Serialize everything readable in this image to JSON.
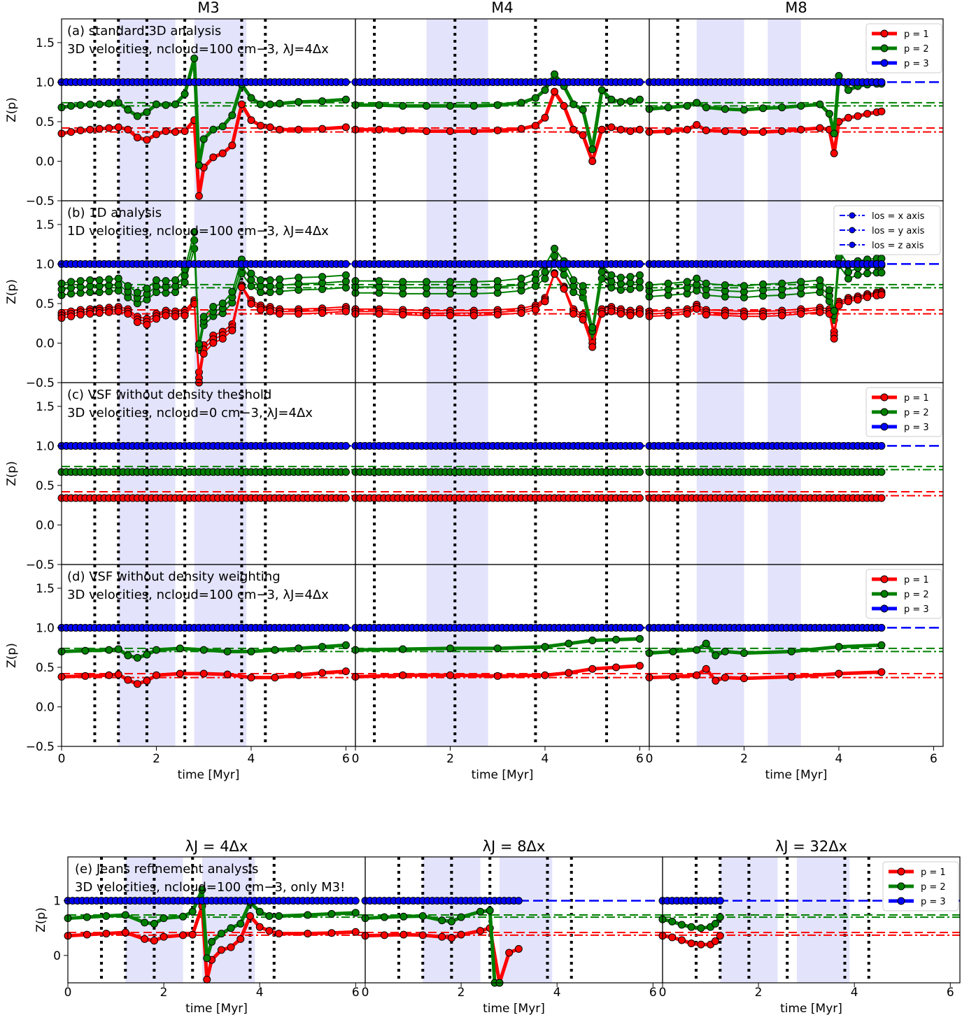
{
  "columns": [
    "M3",
    "M4",
    "M8"
  ],
  "jeans_columns": [
    "λJ = 4Δx",
    "λJ = 8Δx",
    "λJ = 32Δx"
  ],
  "ylabel": "Z(p)",
  "xlabel": "time [Myr]",
  "panel_text": {
    "a": [
      "(a) standard 3D analysis",
      "3D velocities, ncloud=100 cm−3, λJ=4Δx"
    ],
    "b": [
      "(b) 1D analysis",
      "1D velocities, ncloud=100 cm−3, λJ=4Δx"
    ],
    "c": [
      "(c) VSF without density theshold",
      "3D velocities, ncloud=0 cm−3, λJ=4Δx"
    ],
    "d": [
      "(d) VSF without density weighting",
      "3D velocities, ncloud=100 cm−3, λJ=4Δx"
    ],
    "e": [
      "(e) Jeans refinement analysis",
      "3D velocities, ncloud=100 cm−3, only M3!"
    ]
  },
  "legend_p": [
    "p = 1",
    "p = 2",
    "p = 3"
  ],
  "legend_los": [
    "los = x axis",
    "los = y axis",
    "los = z axis"
  ],
  "colors": {
    "p1": "#ff0000",
    "p2": "#008000",
    "p3": "#0000ff",
    "shade": "#e3e3fb"
  },
  "chart_data": {
    "type": "line",
    "x_range": [
      0,
      6.2
    ],
    "y_range_main": [
      -0.5,
      1.8
    ],
    "y_range_jeans": [
      -0.5,
      1.8
    ],
    "yticks_main": [
      "−0.5",
      "0.0",
      "0.5",
      "1.0",
      "1.5"
    ],
    "yticks_jeans": [
      "0",
      "1"
    ],
    "xticks": [
      "0",
      "2",
      "4",
      "6"
    ],
    "reference_lines": {
      "p1_dashed": 0.42,
      "p1_dashdot": 0.37,
      "p2_dashed": 0.74,
      "p2_dashdot": 0.7,
      "p3": 1.0
    },
    "shaded_intervals": {
      "M3": [
        [
          1.2,
          2.4
        ],
        [
          2.8,
          3.9
        ]
      ],
      "M4": [
        [
          1.5,
          2.8
        ]
      ],
      "M8": [
        [
          1.0,
          2.0
        ],
        [
          2.5,
          3.2
        ]
      ]
    },
    "vertical_dotted_lines": {
      "M3": [
        0.7,
        1.2,
        1.8,
        2.6,
        3.8,
        4.3
      ],
      "M4": [
        0.4,
        2.1,
        3.8,
        5.3
      ],
      "M8": [
        0.6
      ]
    },
    "series": {
      "a_M3_p1": {
        "x": [
          0,
          0.2,
          0.4,
          0.6,
          0.8,
          1.0,
          1.2,
          1.4,
          1.6,
          1.8,
          2.0,
          2.2,
          2.4,
          2.6,
          2.8,
          2.9,
          3.0,
          3.2,
          3.4,
          3.6,
          3.8,
          4.0,
          4.2,
          4.4,
          4.6,
          5.0,
          5.5,
          6.0
        ],
        "y": [
          0.35,
          0.37,
          0.39,
          0.4,
          0.41,
          0.42,
          0.43,
          0.4,
          0.3,
          0.27,
          0.34,
          0.38,
          0.37,
          0.38,
          0.52,
          -0.44,
          -0.08,
          0.05,
          0.1,
          0.2,
          0.72,
          0.52,
          0.45,
          0.43,
          0.4,
          0.4,
          0.41,
          0.43
        ]
      },
      "a_M3_p2": {
        "x": [
          0,
          0.2,
          0.4,
          0.6,
          0.8,
          1.0,
          1.2,
          1.4,
          1.6,
          1.8,
          2.0,
          2.2,
          2.4,
          2.6,
          2.8,
          2.9,
          3.0,
          3.2,
          3.4,
          3.6,
          3.8,
          4.0,
          4.2,
          4.4,
          4.6,
          5.0,
          5.5,
          6.0
        ],
        "y": [
          0.68,
          0.7,
          0.71,
          0.72,
          0.72,
          0.73,
          0.74,
          0.65,
          0.57,
          0.62,
          0.72,
          0.71,
          0.72,
          0.85,
          1.3,
          -0.05,
          0.28,
          0.4,
          0.44,
          0.58,
          0.97,
          0.8,
          0.72,
          0.72,
          0.73,
          0.75,
          0.76,
          0.78
        ]
      },
      "a_M4_p1": {
        "x": [
          0,
          0.5,
          1.0,
          1.5,
          2.0,
          2.5,
          3.0,
          3.5,
          3.8,
          4.0,
          4.2,
          4.4,
          4.6,
          4.8,
          5.0,
          5.2,
          5.4,
          5.6,
          5.8,
          6.0
        ],
        "y": [
          0.4,
          0.4,
          0.39,
          0.38,
          0.38,
          0.38,
          0.39,
          0.41,
          0.45,
          0.55,
          0.88,
          0.7,
          0.4,
          0.33,
          0.0,
          0.4,
          0.43,
          0.4,
          0.38,
          0.4
        ]
      },
      "a_M4_p2": {
        "x": [
          0,
          0.5,
          1.0,
          1.5,
          2.0,
          2.5,
          3.0,
          3.5,
          3.8,
          4.0,
          4.2,
          4.4,
          4.6,
          4.8,
          5.0,
          5.2,
          5.4,
          5.6,
          5.8,
          6.0
        ],
        "y": [
          0.71,
          0.71,
          0.7,
          0.7,
          0.7,
          0.7,
          0.71,
          0.74,
          0.8,
          0.9,
          1.1,
          0.95,
          0.72,
          0.65,
          0.15,
          0.9,
          0.78,
          0.75,
          0.76,
          0.78
        ]
      },
      "a_M8_p1": {
        "x": [
          0,
          0.4,
          0.8,
          1.0,
          1.2,
          1.6,
          2.0,
          2.4,
          2.8,
          3.2,
          3.6,
          3.8,
          3.9,
          4.0,
          4.2,
          4.4,
          4.6,
          4.8,
          4.9
        ],
        "y": [
          0.37,
          0.38,
          0.4,
          0.46,
          0.39,
          0.38,
          0.37,
          0.37,
          0.38,
          0.4,
          0.42,
          0.4,
          0.1,
          0.5,
          0.55,
          0.57,
          0.6,
          0.62,
          0.63
        ]
      },
      "a_M8_p2": {
        "x": [
          0,
          0.4,
          0.8,
          1.0,
          1.2,
          1.6,
          2.0,
          2.4,
          2.8,
          3.2,
          3.6,
          3.8,
          3.9,
          4.0,
          4.2,
          4.4,
          4.6,
          4.8,
          4.9
        ],
        "y": [
          0.66,
          0.68,
          0.7,
          0.74,
          0.68,
          0.66,
          0.65,
          0.67,
          0.68,
          0.7,
          0.72,
          0.6,
          0.35,
          1.08,
          0.9,
          0.95,
          0.97,
          0.98,
          0.98
        ]
      },
      "c_p1": 0.34,
      "c_p2": 0.67,
      "d_M3_p1": {
        "x": [
          0,
          0.5,
          1.0,
          1.2,
          1.4,
          1.6,
          1.8,
          2.0,
          2.5,
          3.0,
          3.5,
          4.0,
          4.5,
          5.0,
          5.5,
          6.0
        ],
        "y": [
          0.38,
          0.39,
          0.4,
          0.41,
          0.34,
          0.29,
          0.33,
          0.4,
          0.42,
          0.42,
          0.41,
          0.37,
          0.37,
          0.4,
          0.43,
          0.45
        ]
      },
      "d_M3_p2": {
        "x": [
          0,
          0.5,
          1.0,
          1.2,
          1.4,
          1.6,
          1.8,
          2.0,
          2.5,
          3.0,
          3.5,
          4.0,
          4.5,
          5.0,
          5.5,
          6.0
        ],
        "y": [
          0.7,
          0.71,
          0.72,
          0.73,
          0.65,
          0.62,
          0.66,
          0.72,
          0.74,
          0.72,
          0.7,
          0.7,
          0.72,
          0.74,
          0.76,
          0.78
        ]
      },
      "d_M4_p1": {
        "x": [
          0,
          1,
          2,
          3,
          4,
          4.5,
          5,
          5.5,
          6
        ],
        "y": [
          0.38,
          0.4,
          0.4,
          0.39,
          0.4,
          0.43,
          0.48,
          0.5,
          0.52
        ]
      },
      "d_M4_p2": {
        "x": [
          0,
          1,
          2,
          3,
          4,
          4.5,
          5,
          5.5,
          6
        ],
        "y": [
          0.72,
          0.73,
          0.74,
          0.74,
          0.76,
          0.8,
          0.84,
          0.85,
          0.86
        ]
      },
      "d_M8_p1": {
        "x": [
          0,
          0.5,
          1.0,
          1.2,
          1.4,
          1.6,
          2.0,
          3.0,
          4.0,
          4.9
        ],
        "y": [
          0.37,
          0.38,
          0.4,
          0.48,
          0.33,
          0.37,
          0.36,
          0.38,
          0.42,
          0.44
        ]
      },
      "d_M8_p2": {
        "x": [
          0,
          0.5,
          1.0,
          1.2,
          1.4,
          1.6,
          2.0,
          3.0,
          4.0,
          4.9
        ],
        "y": [
          0.68,
          0.7,
          0.72,
          0.8,
          0.65,
          0.7,
          0.68,
          0.7,
          0.76,
          0.78
        ]
      },
      "e_4_p1": {
        "x": [
          0,
          0.4,
          0.8,
          1.2,
          1.6,
          1.8,
          2.0,
          2.4,
          2.6,
          2.8,
          2.9,
          3.0,
          3.2,
          3.4,
          3.6,
          3.8,
          4.0,
          4.2,
          4.4,
          5.0,
          5.5,
          6.0
        ],
        "y": [
          0.36,
          0.38,
          0.4,
          0.42,
          0.3,
          0.27,
          0.34,
          0.37,
          0.38,
          0.9,
          -0.44,
          -0.08,
          0.1,
          0.15,
          0.3,
          0.72,
          0.52,
          0.45,
          0.4,
          0.4,
          0.41,
          0.43
        ]
      },
      "e_4_p2": {
        "x": [
          0,
          0.4,
          0.8,
          1.2,
          1.6,
          1.8,
          2.0,
          2.4,
          2.6,
          2.8,
          2.9,
          3.0,
          3.2,
          3.4,
          3.6,
          3.8,
          4.0,
          4.2,
          4.4,
          5.0,
          5.5,
          6.0
        ],
        "y": [
          0.68,
          0.7,
          0.72,
          0.74,
          0.6,
          0.58,
          0.68,
          0.71,
          0.8,
          1.2,
          -0.05,
          0.25,
          0.4,
          0.5,
          0.58,
          0.97,
          0.8,
          0.72,
          0.72,
          0.74,
          0.76,
          0.78
        ]
      },
      "e_8_p1": {
        "x": [
          0,
          0.4,
          0.8,
          1.2,
          1.6,
          1.8,
          2.0,
          2.4,
          2.6,
          2.8,
          3.0,
          3.2
        ],
        "y": [
          0.36,
          0.37,
          0.38,
          0.37,
          0.34,
          0.32,
          0.38,
          0.45,
          0.5,
          -0.5,
          0.05,
          0.12
        ]
      },
      "e_8_p2": {
        "x": [
          0,
          0.4,
          0.8,
          1.2,
          1.6,
          1.8,
          2.0,
          2.4,
          2.6,
          2.7,
          2.8
        ],
        "y": [
          0.68,
          0.7,
          0.71,
          0.72,
          0.64,
          0.62,
          0.7,
          0.8,
          0.82,
          -0.5,
          -0.5
        ]
      },
      "e_32_p1": {
        "x": [
          0,
          0.2,
          0.4,
          0.6,
          0.8,
          1.0,
          1.1,
          1.2
        ],
        "y": [
          0.36,
          0.33,
          0.28,
          0.22,
          0.2,
          0.2,
          0.26,
          0.36
        ]
      },
      "e_32_p2": {
        "x": [
          0,
          0.2,
          0.4,
          0.6,
          0.8,
          1.0,
          1.1,
          1.2
        ],
        "y": [
          0.66,
          0.62,
          0.56,
          0.52,
          0.5,
          0.52,
          0.58,
          0.7
        ]
      }
    }
  }
}
